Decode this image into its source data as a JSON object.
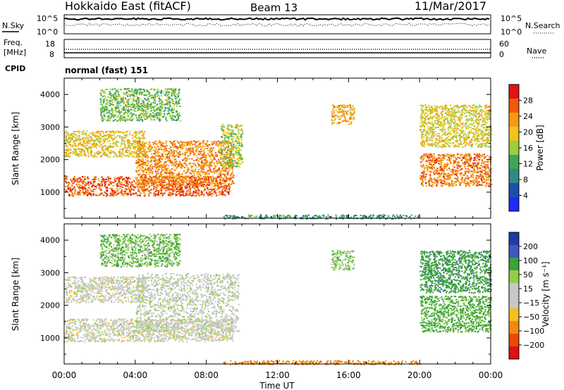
{
  "header": {
    "title": "Hokkaido East (fitACF)",
    "beam": "Beam 13",
    "date": "11/Mar/2017"
  },
  "aux_panels": {
    "nsky_label": "N.Sky",
    "nsearch_label": "N.Search",
    "noise_ticks": [
      "10^5",
      "10^0"
    ],
    "freq_label_line1": "Freq.",
    "freq_label_line2": "[MHz]",
    "freq_ticks": [
      "18",
      "8"
    ],
    "nave_label": "Nave",
    "nave_ticks": [
      "60",
      "0"
    ],
    "cpid_label": "CPID",
    "cpid_text": "normal (fast) 151"
  },
  "colors": {
    "power_scale": [
      "#1e2bff",
      "#1d4fb0",
      "#2f8a86",
      "#3fa65a",
      "#9ccf3a",
      "#f0c21e",
      "#f59a12",
      "#ee5a0a",
      "#e21414"
    ],
    "velocity_scale": [
      "#1e3aa8",
      "#3f58c0",
      "#3aa23a",
      "#8fd04a",
      "#c8c8c8",
      "#c8c8c8",
      "#f2c020",
      "#f08a0a",
      "#ea4a0a",
      "#e01010"
    ]
  },
  "chart_data": [
    {
      "type": "heatmap",
      "name": "power",
      "xlabel": "Time UT",
      "ylabel": "Slant Range [km]",
      "colorbar_label": "Power [dB]",
      "colorbar_ticks": [
        "28",
        "24",
        "20",
        "16",
        "12",
        "8",
        "4"
      ],
      "xlim": [
        0,
        24
      ],
      "ylim": [
        200,
        4500
      ],
      "x_ticks": [
        "00:00",
        "04:00",
        "08:00",
        "12:00",
        "16:00",
        "20:00",
        "00:00"
      ],
      "y_ticks": [
        1000,
        2000,
        3000,
        4000
      ],
      "echo_regions": [
        {
          "t0": 0.0,
          "t1": 9.3,
          "r0": 900,
          "r1": 1500,
          "power": 28
        },
        {
          "t0": 4.0,
          "t1": 9.5,
          "r0": 1200,
          "r1": 2600,
          "power": 25
        },
        {
          "t0": 0.0,
          "t1": 4.5,
          "r0": 2100,
          "r1": 2900,
          "power": 20
        },
        {
          "t0": 2.0,
          "t1": 6.5,
          "r0": 3200,
          "r1": 4200,
          "power": 14
        },
        {
          "t0": 8.8,
          "t1": 10.0,
          "r0": 1800,
          "r1": 3100,
          "power": 16
        },
        {
          "t0": 15.0,
          "t1": 16.3,
          "r0": 3100,
          "r1": 3700,
          "power": 22
        },
        {
          "t0": 20.0,
          "t1": 24.0,
          "r0": 1200,
          "r1": 2200,
          "power": 26
        },
        {
          "t0": 20.0,
          "t1": 24.0,
          "r0": 2400,
          "r1": 3700,
          "power": 19
        },
        {
          "t0": 9.0,
          "t1": 20.0,
          "r0": 200,
          "r1": 320,
          "power": 10
        }
      ]
    },
    {
      "type": "heatmap",
      "name": "velocity",
      "xlabel": "Time UT",
      "ylabel": "Slant Range [km]",
      "colorbar_label": "Velocity [m s⁻¹]",
      "colorbar_ticks": [
        "200",
        "100",
        "50",
        "15",
        "−15",
        "−50",
        "−100",
        "−200"
      ],
      "xlim": [
        0,
        24
      ],
      "ylim": [
        200,
        4500
      ],
      "x_ticks": [
        "00:00",
        "04:00",
        "08:00",
        "12:00",
        "16:00",
        "20:00",
        "00:00"
      ],
      "y_ticks": [
        1000,
        2000,
        3000,
        4000
      ],
      "echo_regions": [
        {
          "t0": 0.0,
          "t1": 9.5,
          "r0": 900,
          "r1": 1600,
          "velocity": 0
        },
        {
          "t0": 4.0,
          "t1": 9.8,
          "r0": 1200,
          "r1": 3000,
          "velocity": 5
        },
        {
          "t0": 0.0,
          "t1": 4.5,
          "r0": 2100,
          "r1": 2900,
          "velocity": 0
        },
        {
          "t0": 2.0,
          "t1": 6.5,
          "r0": 3200,
          "r1": 4200,
          "velocity": 30
        },
        {
          "t0": 15.0,
          "t1": 16.3,
          "r0": 3100,
          "r1": 3700,
          "velocity": 20
        },
        {
          "t0": 20.0,
          "t1": 24.0,
          "r0": 1200,
          "r1": 2300,
          "velocity": 40
        },
        {
          "t0": 20.0,
          "t1": 24.0,
          "r0": 2400,
          "r1": 3700,
          "velocity": 60
        },
        {
          "t0": 9.0,
          "t1": 20.0,
          "r0": 200,
          "r1": 320,
          "velocity": -60
        }
      ]
    }
  ]
}
